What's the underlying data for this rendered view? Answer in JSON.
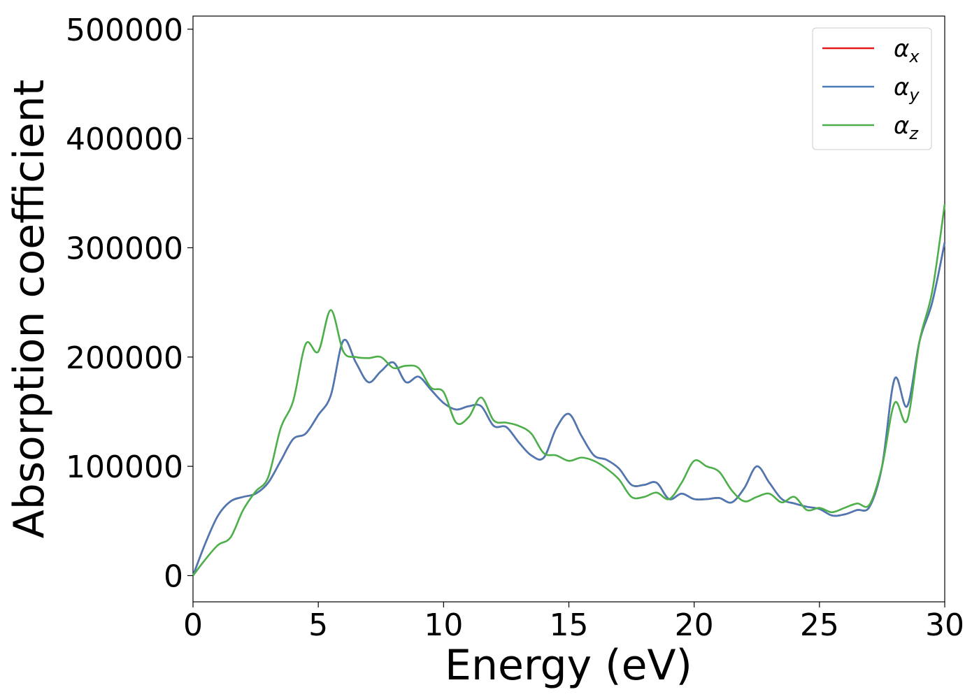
{
  "chart_data": {
    "type": "line",
    "xlabel": "Energy (eV)",
    "ylabel": "Absorption coefficient",
    "xlim": [
      0,
      30
    ],
    "ylim": [
      -24000,
      512000
    ],
    "xticks": [
      0,
      5,
      10,
      15,
      20,
      25,
      30
    ],
    "yticks": [
      0,
      100000,
      200000,
      300000,
      400000,
      500000
    ],
    "grid": false,
    "legend_position": "top-right",
    "series": [
      {
        "name": "α_x",
        "legend_symbol": "α",
        "legend_sub": "x",
        "color": "#e41a1c",
        "x": [
          0,
          0.5,
          1.0,
          1.5,
          2.0,
          2.5,
          3.0,
          3.5,
          4.0,
          4.5,
          5.0,
          5.5,
          6.0,
          6.5,
          7.0,
          7.5,
          8.0,
          8.5,
          9.0,
          9.5,
          10.0,
          10.5,
          11.0,
          11.5,
          12.0,
          12.5,
          13.0,
          13.5,
          14.0,
          14.5,
          15.0,
          15.5,
          16.0,
          16.5,
          17.0,
          17.5,
          18.0,
          18.5,
          19.0,
          19.5,
          20.0,
          20.5,
          21.0,
          21.5,
          22.0,
          22.5,
          23.0,
          23.5,
          24.0,
          24.5,
          25.0,
          25.5,
          26.0,
          26.5,
          27.0,
          27.5,
          28.0,
          28.5,
          29.0,
          29.5,
          30.0
        ],
        "y": [
          0,
          30000,
          55000,
          68000,
          72000,
          75000,
          85000,
          105000,
          125000,
          130000,
          147000,
          165000,
          215000,
          195000,
          177000,
          187000,
          195000,
          177000,
          182000,
          170000,
          158000,
          152000,
          155000,
          155000,
          137000,
          136000,
          122000,
          110000,
          108000,
          135000,
          148000,
          128000,
          110000,
          106000,
          98000,
          83000,
          83000,
          85000,
          70000,
          75000,
          70000,
          70000,
          71000,
          67000,
          80000,
          100000,
          85000,
          70000,
          66000,
          63000,
          61000,
          55000,
          56000,
          60000,
          63000,
          100000,
          180000,
          155000,
          215000,
          250000,
          305000
        ]
      },
      {
        "name": "α_y",
        "legend_symbol": "α",
        "legend_sub": "y",
        "color": "#4a7ab5",
        "x": [
          0,
          0.5,
          1.0,
          1.5,
          2.0,
          2.5,
          3.0,
          3.5,
          4.0,
          4.5,
          5.0,
          5.5,
          6.0,
          6.5,
          7.0,
          7.5,
          8.0,
          8.5,
          9.0,
          9.5,
          10.0,
          10.5,
          11.0,
          11.5,
          12.0,
          12.5,
          13.0,
          13.5,
          14.0,
          14.5,
          15.0,
          15.5,
          16.0,
          16.5,
          17.0,
          17.5,
          18.0,
          18.5,
          19.0,
          19.5,
          20.0,
          20.5,
          21.0,
          21.5,
          22.0,
          22.5,
          23.0,
          23.5,
          24.0,
          24.5,
          25.0,
          25.5,
          26.0,
          26.5,
          27.0,
          27.5,
          28.0,
          28.5,
          29.0,
          29.5,
          30.0
        ],
        "y": [
          0,
          30000,
          55000,
          68000,
          72000,
          75000,
          85000,
          105000,
          125000,
          130000,
          147000,
          165000,
          215000,
          195000,
          177000,
          187000,
          195000,
          177000,
          182000,
          170000,
          158000,
          152000,
          155000,
          155000,
          137000,
          136000,
          122000,
          110000,
          108000,
          135000,
          148000,
          128000,
          110000,
          106000,
          98000,
          83000,
          83000,
          85000,
          70000,
          75000,
          70000,
          70000,
          71000,
          67000,
          80000,
          100000,
          85000,
          70000,
          66000,
          63000,
          61000,
          55000,
          56000,
          60000,
          63000,
          100000,
          180000,
          155000,
          215000,
          250000,
          305000
        ]
      },
      {
        "name": "α_z",
        "legend_symbol": "α",
        "legend_sub": "z",
        "color": "#4daf4a",
        "x": [
          0,
          0.5,
          1.0,
          1.5,
          2.0,
          2.5,
          3.0,
          3.5,
          4.0,
          4.5,
          5.0,
          5.5,
          6.0,
          6.5,
          7.0,
          7.5,
          8.0,
          8.5,
          9.0,
          9.5,
          10.0,
          10.5,
          11.0,
          11.5,
          12.0,
          12.5,
          13.0,
          13.5,
          14.0,
          14.5,
          15.0,
          15.5,
          16.0,
          16.5,
          17.0,
          17.5,
          18.0,
          18.5,
          19.0,
          19.5,
          20.0,
          20.5,
          21.0,
          21.5,
          22.0,
          22.5,
          23.0,
          23.5,
          24.0,
          24.5,
          25.0,
          25.5,
          26.0,
          26.5,
          27.0,
          27.5,
          28.0,
          28.5,
          29.0,
          29.5,
          30.0
        ],
        "y": [
          0,
          15000,
          28000,
          35000,
          60000,
          77000,
          90000,
          135000,
          160000,
          212000,
          205000,
          243000,
          205000,
          200000,
          199000,
          200000,
          190000,
          192000,
          190000,
          172000,
          168000,
          140000,
          145000,
          163000,
          142000,
          140000,
          137000,
          130000,
          112000,
          110000,
          105000,
          108000,
          105000,
          98000,
          88000,
          72000,
          72000,
          76000,
          70000,
          85000,
          105000,
          100000,
          95000,
          78000,
          68000,
          72000,
          75000,
          67000,
          72000,
          60000,
          62000,
          58000,
          62000,
          66000,
          65000,
          100000,
          158000,
          142000,
          215000,
          260000,
          340000
        ]
      }
    ]
  }
}
